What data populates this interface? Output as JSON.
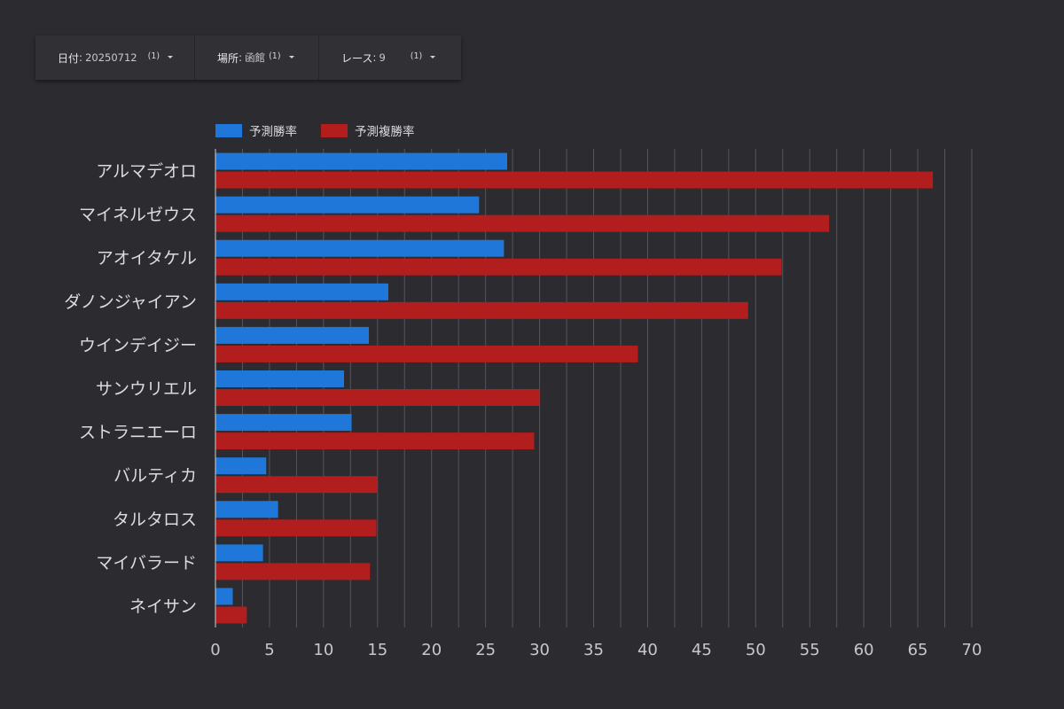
{
  "filters": {
    "date": {
      "label": "日付",
      "value": "20250712",
      "count": "(1)"
    },
    "place": {
      "label": "場所",
      "value": "函館",
      "count": "(1)"
    },
    "race": {
      "label": "レース",
      "value": "9",
      "count": "(1)"
    }
  },
  "colors": {
    "background": "#2b2b30",
    "series_win": "#1f77d9",
    "series_place": "#b21d1d",
    "grid": "#55555b"
  },
  "chart_data": {
    "type": "bar",
    "orientation": "horizontal",
    "categories": [
      "アルマデオロ",
      "マイネルゼウス",
      "アオイタケル",
      "ダノンジャイアン",
      "ウインデイジー",
      "サンウリエル",
      "ストラニエーロ",
      "バルティカ",
      "タルタロス",
      "マイバラード",
      "ネイサン"
    ],
    "series": [
      {
        "name": "予測勝率",
        "color": "#1f77d9",
        "values": [
          27.0,
          24.4,
          26.7,
          16.0,
          14.2,
          11.9,
          12.6,
          4.7,
          5.8,
          4.4,
          1.6
        ]
      },
      {
        "name": "予測複勝率",
        "color": "#b21d1d",
        "values": [
          66.4,
          56.8,
          52.4,
          49.3,
          39.1,
          30.0,
          29.5,
          15.0,
          14.9,
          14.3,
          2.9
        ]
      }
    ],
    "xlim": [
      0,
      70
    ],
    "xticks": [
      0,
      5,
      10,
      15,
      20,
      25,
      30,
      35,
      40,
      45,
      50,
      55,
      60,
      65,
      70
    ],
    "minor_grid_step": 2.5,
    "grid": true,
    "legend_position": "top-left"
  }
}
